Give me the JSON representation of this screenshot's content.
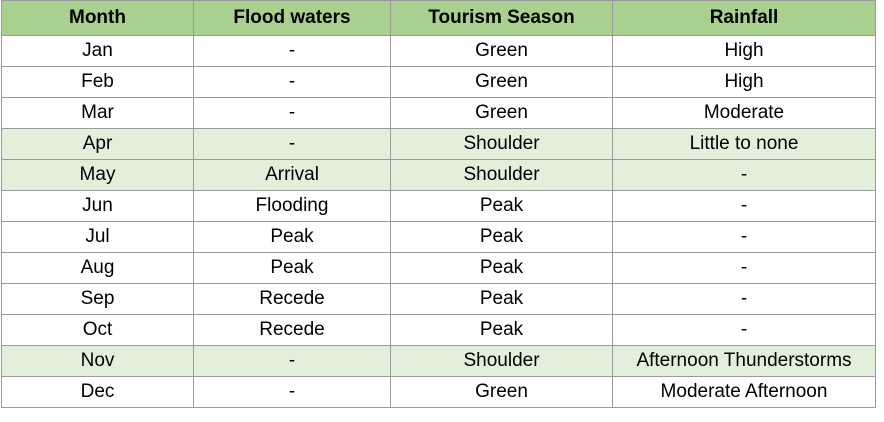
{
  "table": {
    "header": [
      "Month",
      "Flood waters",
      "Tourism Season",
      "Rainfall"
    ],
    "header_fill": "#a9d08e",
    "rows": [
      [
        "Jan",
        "-",
        "Green",
        "High"
      ],
      [
        "Feb",
        "-",
        "Green",
        "High"
      ],
      [
        "Mar",
        "-",
        "Green",
        "Moderate"
      ],
      [
        "Apr",
        "-",
        "Shoulder",
        "Little to none"
      ],
      [
        "May",
        "Arrival",
        "Shoulder",
        "-"
      ],
      [
        "Jun",
        "Flooding",
        "Peak",
        "-"
      ],
      [
        "Jul",
        "Peak",
        "Peak",
        "-"
      ],
      [
        "Aug",
        "Peak",
        "Peak",
        "-"
      ],
      [
        "Sep",
        "Recede",
        "Peak",
        "-"
      ],
      [
        "Oct",
        "Recede",
        "Peak",
        "-"
      ],
      [
        "Nov",
        "-",
        "Shoulder",
        "Afternoon Thunderstorms"
      ],
      [
        "Dec",
        "-",
        "Green",
        "Moderate Afternoon"
      ]
    ],
    "row_fill": [
      "#ffffff",
      "#ffffff",
      "#ffffff",
      "#e2efda",
      "#e2efda",
      "#ffffff",
      "#ffffff",
      "#ffffff",
      "#ffffff",
      "#ffffff",
      "#e2efda",
      "#ffffff"
    ]
  }
}
